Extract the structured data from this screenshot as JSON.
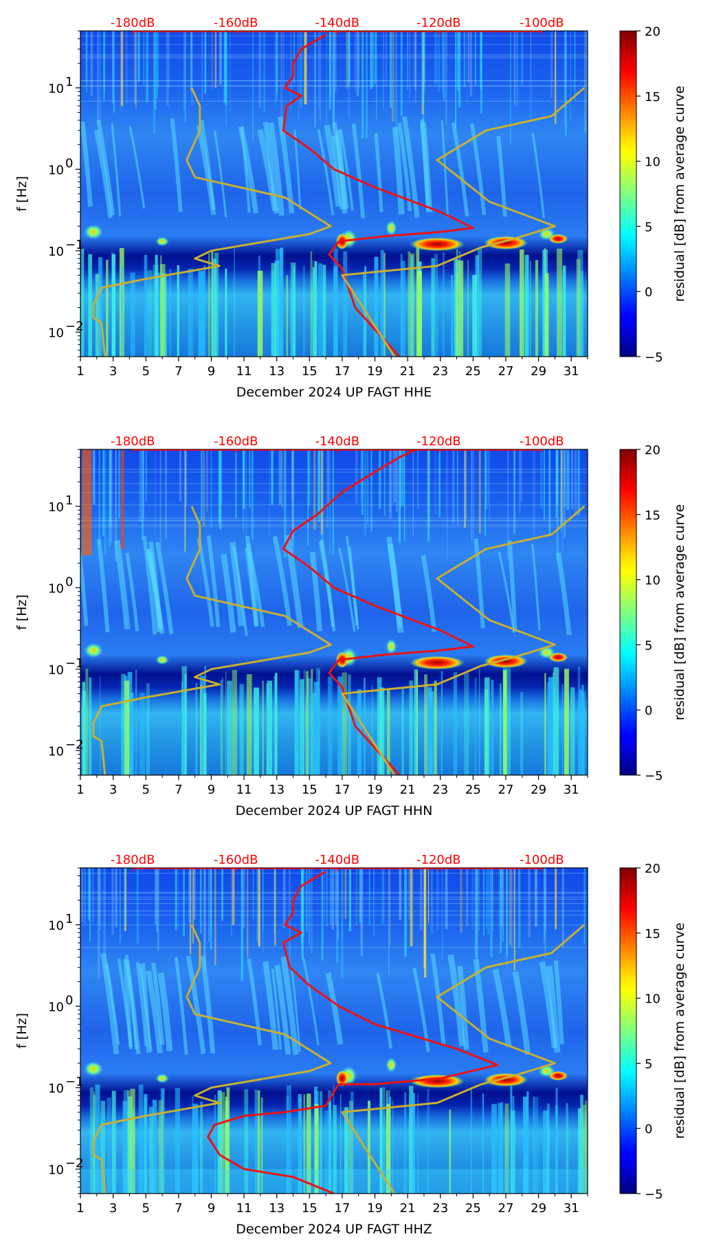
{
  "chart_data": [
    {
      "type": "heatmap",
      "xlabel": "December 2024 UP FAGT  HHE",
      "ylabel": "f [Hz]",
      "x_ticks": [
        "1",
        "3",
        "5",
        "7",
        "9",
        "11",
        "13",
        "15",
        "17",
        "19",
        "21",
        "23",
        "25",
        "27",
        "29",
        "31"
      ],
      "y_ticks": [
        {
          "v": 0.01,
          "base": "10",
          "exp": "−2"
        },
        {
          "v": 0.1,
          "base": "10",
          "exp": "−1"
        },
        {
          "v": 1,
          "base": "10",
          "exp": "0"
        },
        {
          "v": 10,
          "base": "10",
          "exp": "1"
        }
      ],
      "xlim": [
        1,
        32
      ],
      "ylim": [
        0.005,
        50
      ],
      "db_scale": [
        "-180dB",
        "-160dB",
        "-140dB",
        "-120dB",
        "-100dB"
      ],
      "db_positions_day": [
        4.2,
        10.5,
        16.7,
        22.9,
        29.2
      ],
      "colorbar": {
        "label": "residual [dB] from average curve",
        "ticks": [
          "20",
          "15",
          "10",
          "5",
          "0",
          "−5"
        ],
        "range": [
          -5,
          20
        ]
      },
      "series": [
        {
          "name": "average spectrum (dB)",
          "color": "#ee1111",
          "points": [
            [
              20.5,
              0.005
            ],
            [
              17.8,
              0.02
            ],
            [
              17.0,
              0.06
            ],
            [
              16.2,
              0.09
            ],
            [
              16.8,
              0.13
            ],
            [
              19.5,
              0.15
            ],
            [
              23.0,
              0.17
            ],
            [
              25.0,
              0.19
            ],
            [
              23.0,
              0.3
            ],
            [
              19.0,
              0.6
            ],
            [
              16.5,
              1.0
            ],
            [
              15.0,
              1.8
            ],
            [
              13.4,
              3.0
            ],
            [
              13.6,
              6.0
            ],
            [
              14.5,
              8.0
            ],
            [
              13.5,
              10.0
            ],
            [
              14.0,
              14.0
            ],
            [
              14.0,
              20.0
            ],
            [
              14.5,
              30.0
            ],
            [
              16.0,
              45.0
            ]
          ]
        },
        {
          "name": "reference noise model (dB)",
          "color": "#c8b030",
          "points": [
            [
              2.5,
              0.005
            ],
            [
              2.3,
              0.013
            ],
            [
              1.8,
              0.015
            ],
            [
              1.8,
              0.022
            ],
            [
              2.3,
              0.035
            ],
            [
              5.0,
              0.045
            ],
            [
              9.5,
              0.065
            ],
            [
              8.0,
              0.08
            ],
            [
              9.0,
              0.1
            ],
            [
              15.0,
              0.16
            ],
            [
              16.3,
              0.2
            ],
            [
              13.5,
              0.45
            ],
            [
              8.0,
              0.8
            ],
            [
              7.5,
              1.3
            ],
            [
              8.3,
              3.0
            ],
            [
              8.3,
              6.0
            ],
            [
              7.8,
              10.0
            ]
          ]
        },
        {
          "name": "reference noise model high (dB)",
          "color": "#c8b030",
          "points": [
            [
              20.2,
              0.005
            ],
            [
              17.0,
              0.05
            ],
            [
              22.8,
              0.065
            ],
            [
              25.5,
              0.11
            ],
            [
              27.5,
              0.14
            ],
            [
              30.0,
              0.2
            ],
            [
              26.0,
              0.4
            ],
            [
              22.8,
              1.3
            ],
            [
              25.8,
              3.0
            ],
            [
              29.8,
              4.5
            ],
            [
              31.8,
              10.0
            ]
          ]
        }
      ]
    },
    {
      "type": "heatmap",
      "xlabel": "December 2024 UP FAGT  HHN",
      "ylabel": "f [Hz]",
      "x_ticks": [
        "1",
        "3",
        "5",
        "7",
        "9",
        "11",
        "13",
        "15",
        "17",
        "19",
        "21",
        "23",
        "25",
        "27",
        "29",
        "31"
      ],
      "y_ticks": [
        {
          "v": 0.01,
          "base": "10",
          "exp": "−2"
        },
        {
          "v": 0.1,
          "base": "10",
          "exp": "−1"
        },
        {
          "v": 1,
          "base": "10",
          "exp": "0"
        },
        {
          "v": 10,
          "base": "10",
          "exp": "1"
        }
      ],
      "xlim": [
        1,
        32
      ],
      "ylim": [
        0.005,
        50
      ],
      "db_scale": [
        "-180dB",
        "-160dB",
        "-140dB",
        "-120dB",
        "-100dB"
      ],
      "db_positions_day": [
        4.2,
        10.5,
        16.7,
        22.9,
        29.2
      ],
      "colorbar": {
        "label": "residual [dB] from average curve",
        "ticks": [
          "20",
          "15",
          "10",
          "5",
          "0",
          "−5"
        ],
        "range": [
          -5,
          20
        ]
      },
      "series": [
        {
          "name": "average spectrum (dB)",
          "color": "#ee1111",
          "points": [
            [
              20.5,
              0.005
            ],
            [
              17.8,
              0.02
            ],
            [
              17.0,
              0.06
            ],
            [
              16.2,
              0.09
            ],
            [
              16.8,
              0.13
            ],
            [
              19.5,
              0.15
            ],
            [
              23.0,
              0.17
            ],
            [
              25.0,
              0.19
            ],
            [
              23.0,
              0.3
            ],
            [
              19.0,
              0.6
            ],
            [
              16.5,
              1.0
            ],
            [
              15.0,
              1.8
            ],
            [
              13.4,
              3.0
            ],
            [
              14.0,
              5.0
            ],
            [
              15.5,
              8.0
            ],
            [
              17.0,
              15.0
            ],
            [
              18.8,
              25.0
            ],
            [
              20.5,
              40.0
            ],
            [
              21.5,
              50.0
            ]
          ]
        },
        {
          "name": "reference noise model (dB)",
          "color": "#c8b030",
          "points": [
            [
              2.5,
              0.005
            ],
            [
              2.3,
              0.013
            ],
            [
              1.8,
              0.015
            ],
            [
              1.8,
              0.022
            ],
            [
              2.3,
              0.035
            ],
            [
              5.0,
              0.045
            ],
            [
              9.5,
              0.065
            ],
            [
              8.0,
              0.08
            ],
            [
              9.0,
              0.1
            ],
            [
              15.0,
              0.16
            ],
            [
              16.3,
              0.2
            ],
            [
              13.5,
              0.45
            ],
            [
              8.0,
              0.8
            ],
            [
              7.5,
              1.3
            ],
            [
              8.3,
              3.0
            ],
            [
              8.3,
              6.0
            ],
            [
              7.8,
              10.0
            ]
          ]
        },
        {
          "name": "reference noise model high (dB)",
          "color": "#c8b030",
          "points": [
            [
              20.2,
              0.005
            ],
            [
              17.0,
              0.05
            ],
            [
              22.8,
              0.065
            ],
            [
              25.5,
              0.11
            ],
            [
              27.5,
              0.14
            ],
            [
              30.0,
              0.2
            ],
            [
              26.0,
              0.4
            ],
            [
              22.8,
              1.3
            ],
            [
              25.8,
              3.0
            ],
            [
              29.8,
              4.5
            ],
            [
              31.8,
              10.0
            ]
          ]
        }
      ]
    },
    {
      "type": "heatmap",
      "xlabel": "December 2024 UP FAGT  HHZ",
      "ylabel": "f [Hz]",
      "x_ticks": [
        "1",
        "3",
        "5",
        "7",
        "9",
        "11",
        "13",
        "15",
        "17",
        "19",
        "21",
        "23",
        "25",
        "27",
        "29",
        "31"
      ],
      "y_ticks": [
        {
          "v": 0.01,
          "base": "10",
          "exp": "−2"
        },
        {
          "v": 0.1,
          "base": "10",
          "exp": "−1"
        },
        {
          "v": 1,
          "base": "10",
          "exp": "0"
        },
        {
          "v": 10,
          "base": "10",
          "exp": "1"
        }
      ],
      "xlim": [
        1,
        32
      ],
      "ylim": [
        0.005,
        50
      ],
      "db_scale": [
        "-180dB",
        "-160dB",
        "-140dB",
        "-120dB",
        "-100dB"
      ],
      "db_positions_day": [
        4.2,
        10.5,
        16.7,
        22.9,
        29.2
      ],
      "colorbar": {
        "label": "residual [dB] from average curve",
        "ticks": [
          "20",
          "15",
          "10",
          "5",
          "0",
          "−5"
        ],
        "range": [
          -5,
          20
        ]
      },
      "series": [
        {
          "name": "average spectrum (dB)",
          "color": "#ee1111",
          "points": [
            [
              16.5,
              0.005
            ],
            [
              14.0,
              0.008
            ],
            [
              11.0,
              0.01
            ],
            [
              9.5,
              0.015
            ],
            [
              8.8,
              0.025
            ],
            [
              9.2,
              0.035
            ],
            [
              11.0,
              0.045
            ],
            [
              13.5,
              0.05
            ],
            [
              16.0,
              0.06
            ],
            [
              16.5,
              0.09
            ],
            [
              16.8,
              0.11
            ],
            [
              19.0,
              0.11
            ],
            [
              23.0,
              0.13
            ],
            [
              26.5,
              0.19
            ],
            [
              24.0,
              0.3
            ],
            [
              19.0,
              0.6
            ],
            [
              16.8,
              1.0
            ],
            [
              15.0,
              1.8
            ],
            [
              13.8,
              3.0
            ],
            [
              13.4,
              6.0
            ],
            [
              14.5,
              8.0
            ],
            [
              13.5,
              10.0
            ],
            [
              14.0,
              14.0
            ],
            [
              14.0,
              20.0
            ],
            [
              14.5,
              30.0
            ],
            [
              16.0,
              45.0
            ]
          ]
        },
        {
          "name": "reference noise model (dB)",
          "color": "#c8b030",
          "points": [
            [
              2.5,
              0.005
            ],
            [
              2.3,
              0.013
            ],
            [
              1.8,
              0.015
            ],
            [
              1.8,
              0.022
            ],
            [
              2.3,
              0.035
            ],
            [
              5.0,
              0.045
            ],
            [
              9.5,
              0.065
            ],
            [
              8.0,
              0.08
            ],
            [
              9.0,
              0.1
            ],
            [
              15.0,
              0.16
            ],
            [
              16.3,
              0.2
            ],
            [
              13.5,
              0.45
            ],
            [
              8.0,
              0.8
            ],
            [
              7.5,
              1.3
            ],
            [
              8.3,
              3.0
            ],
            [
              8.3,
              6.0
            ],
            [
              7.8,
              10.0
            ]
          ]
        },
        {
          "name": "reference noise model high (dB)",
          "color": "#c8b030",
          "points": [
            [
              20.2,
              0.005
            ],
            [
              17.0,
              0.05
            ],
            [
              22.8,
              0.065
            ],
            [
              25.5,
              0.11
            ],
            [
              27.5,
              0.14
            ],
            [
              30.0,
              0.2
            ],
            [
              26.0,
              0.4
            ],
            [
              22.8,
              1.3
            ],
            [
              25.8,
              3.0
            ],
            [
              29.8,
              4.5
            ],
            [
              31.8,
              10.0
            ]
          ]
        }
      ]
    }
  ]
}
